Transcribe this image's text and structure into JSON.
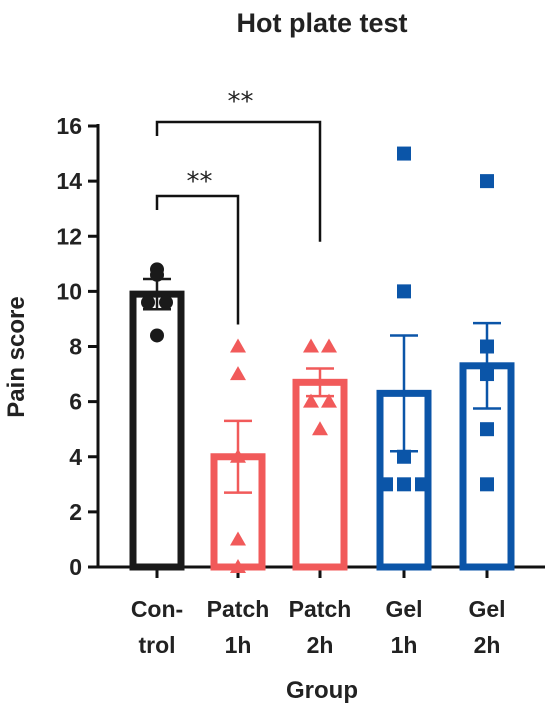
{
  "chart_data": {
    "type": "bar",
    "title": "Hot plate test",
    "xlabel": "Group",
    "ylabel": "Pain score",
    "ylim": [
      0,
      16
    ],
    "yticks": [
      0,
      2,
      4,
      6,
      8,
      10,
      12,
      14,
      16
    ],
    "categories": [
      {
        "line1": "Con-",
        "line2": "trol"
      },
      {
        "line1": "Patch",
        "line2": "1h"
      },
      {
        "line1": "Patch",
        "line2": "2h"
      },
      {
        "line1": "Gel",
        "line2": "1h"
      },
      {
        "line1": "Gel",
        "line2": "2h"
      }
    ],
    "groups": [
      {
        "mean": 9.9,
        "sem": 0.55,
        "color": "#1a1a1a",
        "marker": "circle",
        "points": [
          10.8,
          10.6,
          9.6,
          9.6,
          8.4
        ]
      },
      {
        "mean": 4.0,
        "sem": 1.3,
        "color": "#f15a5a",
        "marker": "triangle",
        "points": [
          8.0,
          7.0,
          4.0,
          1.0,
          0.0
        ]
      },
      {
        "mean": 6.7,
        "sem": 0.5,
        "color": "#f15a5a",
        "marker": "triangle",
        "points": [
          8.0,
          8.0,
          6.0,
          6.0,
          5.0
        ]
      },
      {
        "mean": 6.3,
        "sem": 2.1,
        "color": "#0b55a8",
        "marker": "square",
        "points": [
          15.0,
          10.0,
          4.0,
          3.0,
          3.0,
          3.0
        ]
      },
      {
        "mean": 7.3,
        "sem": 1.55,
        "color": "#0b55a8",
        "marker": "square",
        "points": [
          14.0,
          8.0,
          7.0,
          5.0,
          3.0
        ]
      }
    ],
    "significance": [
      {
        "from": 0,
        "to": 1,
        "label": "**"
      },
      {
        "from": 0,
        "to": 2,
        "label": "**"
      }
    ],
    "grid": false,
    "legend": "none"
  }
}
